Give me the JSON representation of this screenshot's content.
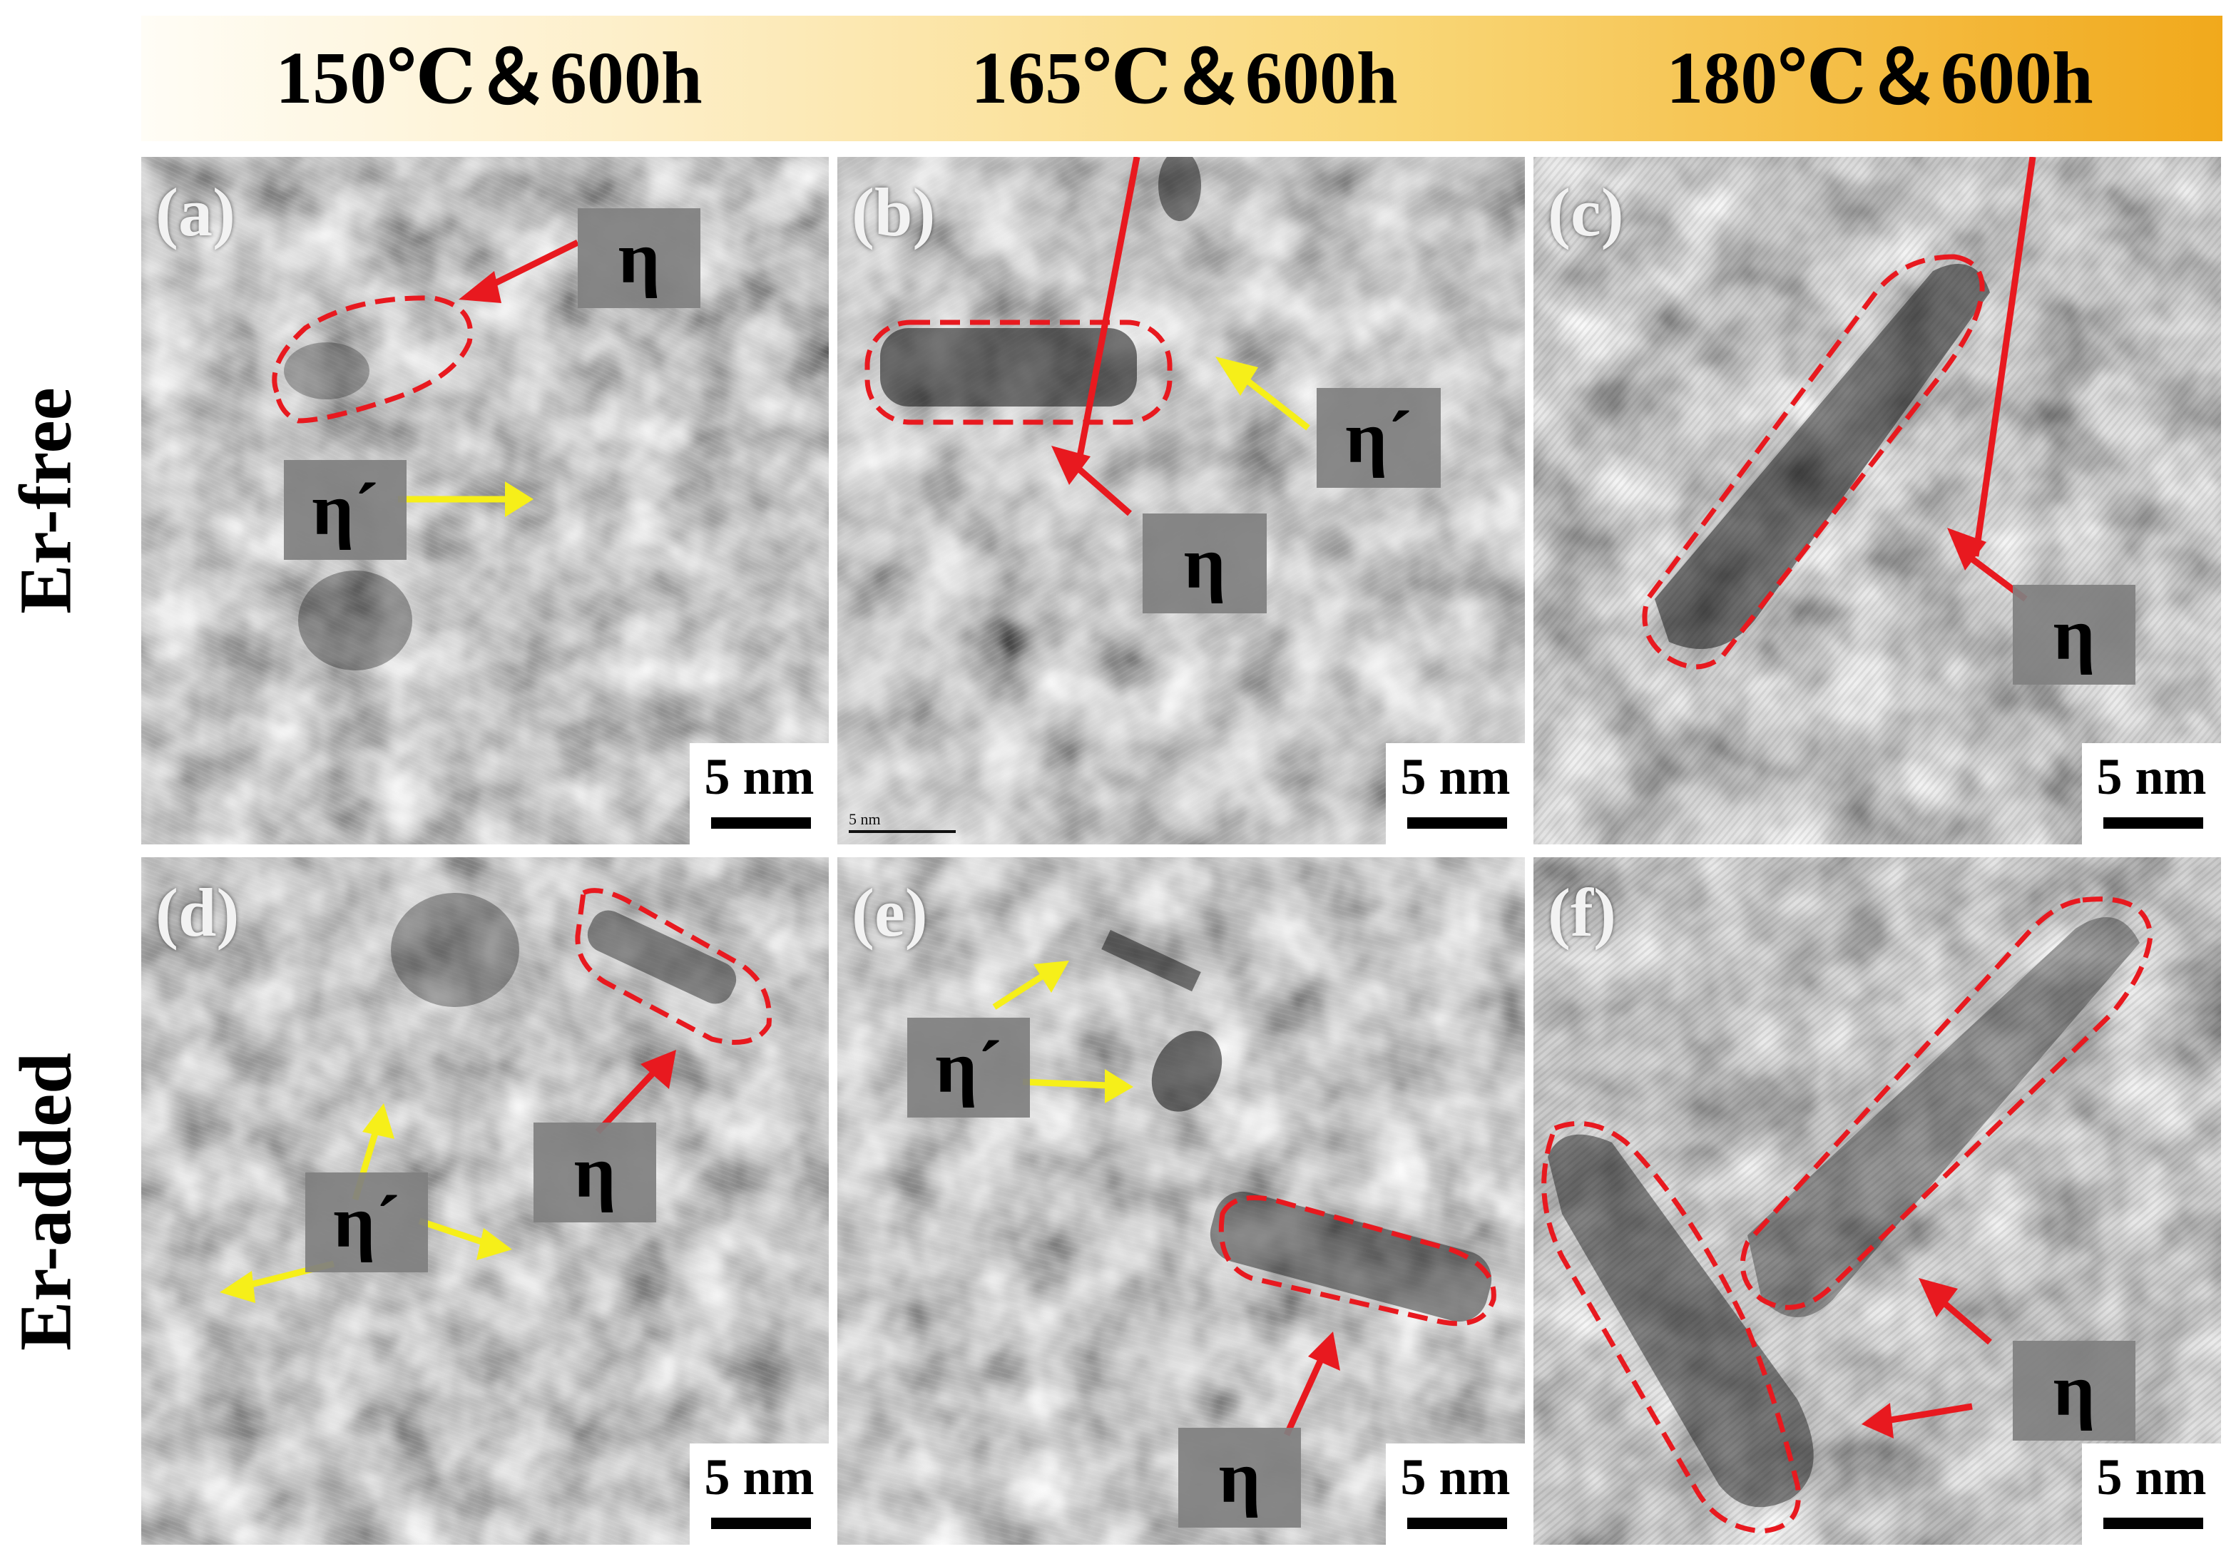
{
  "columns": [
    "150℃＆600h",
    "165℃＆600h",
    "180℃＆600h"
  ],
  "rows": [
    "Er-free",
    "Er-added"
  ],
  "panels": [
    {
      "label": "(a)",
      "scale": "5 nm",
      "tags": [
        "η",
        "η´"
      ]
    },
    {
      "label": "(b)",
      "scale": "5 nm",
      "small_scale": "5 nm",
      "tags": [
        "η´",
        "η"
      ]
    },
    {
      "label": "(c)",
      "scale": "5 nm",
      "tags": [
        "η"
      ]
    },
    {
      "label": "(d)",
      "scale": "5 nm",
      "tags": [
        "η",
        "η´"
      ]
    },
    {
      "label": "(e)",
      "scale": "5 nm",
      "tags": [
        "η´",
        "η"
      ]
    },
    {
      "label": "(f)",
      "scale": "5 nm",
      "tags": [
        "η"
      ]
    }
  ],
  "colors": {
    "arrow_eta": "#e8191f",
    "arrow_eta_prime": "#f6ef19",
    "outline": "#e8191f",
    "header_end": "#f1a91c"
  }
}
